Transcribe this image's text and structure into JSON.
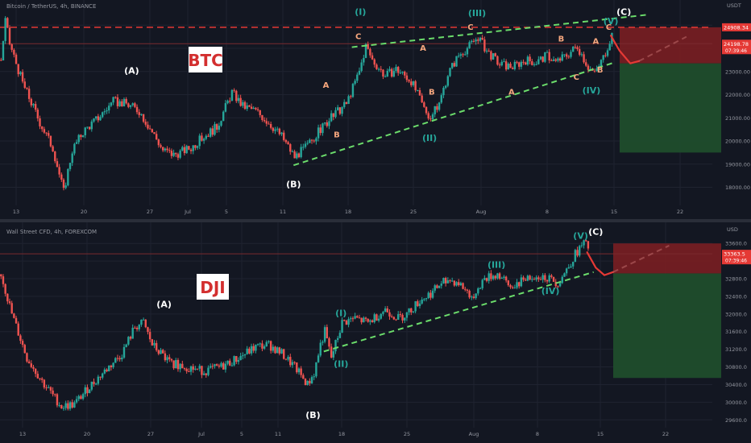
{
  "colors": {
    "background": "#131722",
    "grid": "#1f2330",
    "up": "#26a69a",
    "down": "#ef5350",
    "wave_label_green": "#26a69a",
    "wave_label_orange": "#f6a77e",
    "trendline": "#4caf50",
    "dashed_red": "#e53935",
    "projection": "#e53935",
    "axis_text": "#9598a1",
    "stop_zone": "#7a1e22",
    "target_zone": "#1f4d2c"
  },
  "chart_data": [
    {
      "type": "candlestick",
      "header": "Bitcoin / TetherUS, 4h, BINANCE",
      "watermark": "BTC",
      "currency": "USDT",
      "ylim": [
        17600,
        25600
      ],
      "y_ticks": [
        "25000.00",
        "24000.00",
        "23000.00",
        "22000.00",
        "21000.00",
        "20000.00",
        "19000.00",
        "18000.00"
      ],
      "y_tick_values": [
        25000,
        24000,
        23000,
        22000,
        21000,
        20000,
        19000,
        18000
      ],
      "price_tags": [
        {
          "label": "24908.34",
          "value": 24908.34
        },
        {
          "label": "24198.78",
          "value": 24198.78,
          "sub": "07:39:46"
        }
      ],
      "x_ticks": [
        "13",
        "20",
        "27",
        "Jul",
        "5",
        "11",
        "18",
        "25",
        "Aug",
        "8",
        "15",
        "22"
      ],
      "series_path": [
        [
          0,
          23500
        ],
        [
          2,
          25200
        ],
        [
          4,
          24200
        ],
        [
          10,
          22500
        ],
        [
          18,
          20800
        ],
        [
          24,
          19700
        ],
        [
          29,
          17800
        ],
        [
          33,
          19600
        ],
        [
          38,
          20400
        ],
        [
          45,
          21000
        ],
        [
          52,
          21700
        ],
        [
          58,
          21600
        ],
        [
          64,
          21300
        ],
        [
          70,
          20400
        ],
        [
          75,
          19600
        ],
        [
          80,
          19400
        ],
        [
          88,
          19700
        ],
        [
          94,
          20200
        ],
        [
          100,
          20600
        ],
        [
          107,
          22100
        ],
        [
          112,
          21500
        ],
        [
          118,
          21300
        ],
        [
          124,
          20800
        ],
        [
          130,
          20200
        ],
        [
          136,
          19300
        ],
        [
          142,
          19800
        ],
        [
          148,
          20500
        ],
        [
          154,
          21100
        ],
        [
          160,
          21600
        ],
        [
          166,
          23000
        ],
        [
          169,
          24100
        ],
        [
          172,
          23500
        ],
        [
          178,
          22800
        ],
        [
          183,
          23100
        ],
        [
          190,
          22600
        ],
        [
          196,
          21400
        ],
        [
          199,
          21000
        ],
        [
          203,
          21600
        ],
        [
          207,
          22900
        ],
        [
          212,
          23700
        ],
        [
          217,
          24100
        ],
        [
          221,
          24500
        ],
        [
          225,
          23900
        ],
        [
          231,
          23300
        ],
        [
          237,
          23200
        ],
        [
          243,
          23500
        ],
        [
          248,
          23400
        ],
        [
          253,
          23700
        ],
        [
          257,
          23400
        ],
        [
          262,
          23700
        ],
        [
          267,
          24100
        ],
        [
          272,
          23200
        ],
        [
          275,
          22900
        ],
        [
          279,
          23600
        ],
        [
          283,
          24600
        ]
      ],
      "resistance_line": [
        [
          163,
          24050
        ],
        [
          300,
          25450
        ]
      ],
      "support_line": [
        [
          136,
          18950
        ],
        [
          285,
          23400
        ]
      ],
      "projection_path": [
        [
          283,
          24550
        ],
        [
          287,
          23900
        ],
        [
          292,
          23350
        ],
        [
          296,
          23450
        ]
      ],
      "faded_line": [
        [
          296,
          23450
        ],
        [
          318,
          24500
        ]
      ],
      "dashed_level": 24908.34,
      "solid_level": 24198.78,
      "zones": {
        "stop": [
          24908.34,
          23350
        ],
        "target": [
          23350,
          19500
        ]
      },
      "wave_labels": [
        {
          "text": "(A)",
          "x": 61,
          "y": 22900,
          "style": "white"
        },
        {
          "text": "(B)",
          "x": 136,
          "y": 18000,
          "style": "white"
        },
        {
          "text": "(C)",
          "x": 289,
          "y": 25450,
          "style": "white"
        },
        {
          "text": "(I)",
          "x": 167,
          "y": 25450,
          "style": "green"
        },
        {
          "text": "(II)",
          "x": 199,
          "y": 20000,
          "style": "green"
        },
        {
          "text": "(III)",
          "x": 221,
          "y": 25400,
          "style": "green"
        },
        {
          "text": "(IV)",
          "x": 274,
          "y": 22050,
          "style": "green"
        },
        {
          "text": "(V)",
          "x": 283,
          "y": 25050,
          "style": "green"
        },
        {
          "text": "A",
          "x": 151,
          "y": 22300,
          "style": "orange"
        },
        {
          "text": "B",
          "x": 156,
          "y": 20150,
          "style": "orange"
        },
        {
          "text": "C",
          "x": 166,
          "y": 24400,
          "style": "orange"
        },
        {
          "text": "A",
          "x": 196,
          "y": 23900,
          "style": "orange"
        },
        {
          "text": "B",
          "x": 200,
          "y": 22000,
          "style": "orange"
        },
        {
          "text": "C",
          "x": 218,
          "y": 24800,
          "style": "orange"
        },
        {
          "text": "A",
          "x": 237,
          "y": 22000,
          "style": "orange"
        },
        {
          "text": "B",
          "x": 260,
          "y": 24300,
          "style": "orange"
        },
        {
          "text": "C",
          "x": 267,
          "y": 22650,
          "style": "orange"
        },
        {
          "text": "A",
          "x": 276,
          "y": 24200,
          "style": "orange"
        },
        {
          "text": "B",
          "x": 278,
          "y": 22950,
          "style": "orange"
        },
        {
          "text": "C",
          "x": 282,
          "y": 24800,
          "style": "orange"
        }
      ]
    },
    {
      "type": "candlestick",
      "header": "Wall Street CFD, 4h, FOREXCOM",
      "watermark": "DJI",
      "currency": "USD",
      "ylim": [
        29550,
        33750
      ],
      "y_ticks": [
        "33600.0",
        "33200.0",
        "32800.0",
        "32400.0",
        "32000.0",
        "31600.0",
        "31200.0",
        "30800.0",
        "30400.0",
        "30000.0",
        "29600.0"
      ],
      "y_tick_values": [
        33600,
        33200,
        32800,
        32400,
        32000,
        31600,
        31200,
        30800,
        30400,
        30000,
        29600
      ],
      "price_tags": [
        {
          "label": "33363.5",
          "value": 33363.5,
          "sub": "07:39:46"
        }
      ],
      "x_ticks": [
        "13",
        "20",
        "27",
        "Jul",
        "5",
        "11",
        "18",
        "25",
        "Aug",
        "8",
        "15",
        "22"
      ],
      "series_path": [
        [
          0,
          32900
        ],
        [
          5,
          32000
        ],
        [
          12,
          31000
        ],
        [
          20,
          30400
        ],
        [
          28,
          29900
        ],
        [
          34,
          29950
        ],
        [
          40,
          30300
        ],
        [
          48,
          30700
        ],
        [
          56,
          31100
        ],
        [
          62,
          31700
        ],
        [
          66,
          31800
        ],
        [
          70,
          31300
        ],
        [
          78,
          30900
        ],
        [
          86,
          30800
        ],
        [
          94,
          30700
        ],
        [
          102,
          30800
        ],
        [
          110,
          31000
        ],
        [
          118,
          31250
        ],
        [
          124,
          31300
        ],
        [
          130,
          31100
        ],
        [
          136,
          30800
        ],
        [
          142,
          30400
        ],
        [
          145,
          30650
        ],
        [
          148,
          31300
        ],
        [
          150,
          31600
        ],
        [
          153,
          31000
        ],
        [
          158,
          31800
        ],
        [
          164,
          31900
        ],
        [
          170,
          31800
        ],
        [
          178,
          32100
        ],
        [
          184,
          31900
        ],
        [
          188,
          32000
        ],
        [
          194,
          32300
        ],
        [
          200,
          32500
        ],
        [
          206,
          32800
        ],
        [
          212,
          32700
        ],
        [
          218,
          32400
        ],
        [
          224,
          32800
        ],
        [
          230,
          32900
        ],
        [
          236,
          32600
        ],
        [
          242,
          32800
        ],
        [
          248,
          32900
        ],
        [
          254,
          32800
        ],
        [
          258,
          32700
        ],
        [
          262,
          33000
        ],
        [
          266,
          33350
        ],
        [
          270,
          33600
        ],
        [
          272,
          33500
        ]
      ],
      "support_line": [
        [
          150,
          31150
        ],
        [
          275,
          32950
        ]
      ],
      "projection_path": [
        [
          272,
          33400
        ],
        [
          276,
          33050
        ],
        [
          280,
          32880
        ],
        [
          284,
          32950
        ]
      ],
      "faded_line": [
        [
          284,
          32950
        ],
        [
          310,
          33550
        ]
      ],
      "solid_level": 33363.5,
      "zones": {
        "stop": [
          33600,
          32920
        ],
        "target": [
          32920,
          30550
        ]
      },
      "wave_labels": [
        {
          "text": "(A)",
          "x": 76,
          "y": 32150,
          "style": "white"
        },
        {
          "text": "(B)",
          "x": 145,
          "y": 29640,
          "style": "white"
        },
        {
          "text": "(C)",
          "x": 276,
          "y": 33800,
          "style": "white"
        },
        {
          "text": "(I)",
          "x": 158,
          "y": 31950,
          "style": "green"
        },
        {
          "text": "(II)",
          "x": 158,
          "y": 30800,
          "style": "green"
        },
        {
          "text": "(III)",
          "x": 230,
          "y": 33050,
          "style": "green"
        },
        {
          "text": "(IV)",
          "x": 255,
          "y": 32450,
          "style": "green"
        },
        {
          "text": "(V)",
          "x": 269,
          "y": 33700,
          "style": "green"
        }
      ]
    }
  ]
}
